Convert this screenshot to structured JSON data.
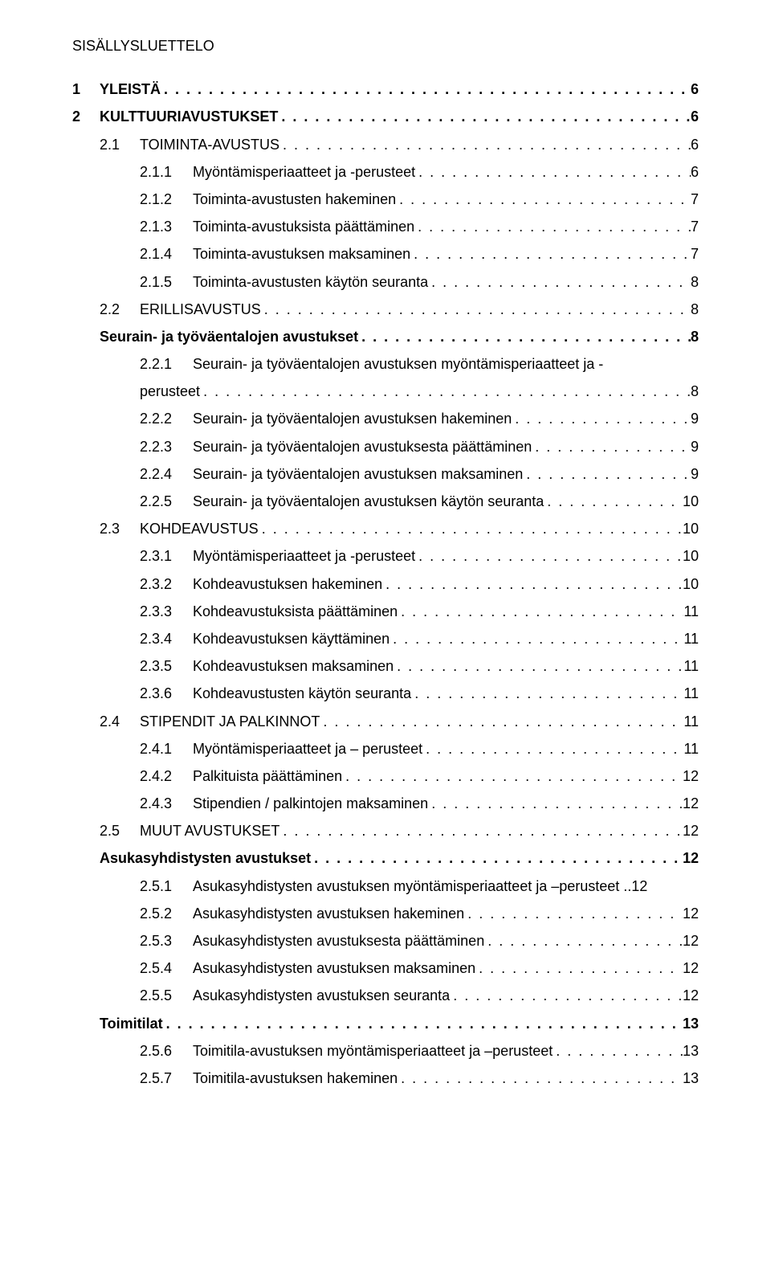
{
  "toc_heading": "SISÄLLYSLUETTELO",
  "dots": ". . . . . . . . . . . . . . . . . . . . . . . . . . . . . . . . . . . . . . . . . . . . . . . . . . . . . . . . . . . . . . . . . . . . . . . . . . . . . . . . . . . . . . . . . . . . . . . . . . . . . . . . . . . . . . . . . . . . . . . .",
  "entries": [
    {
      "level": 0,
      "num": "1",
      "label": "YLEISTÄ",
      "page": "6",
      "bold": true
    },
    {
      "level": 0,
      "num": "2",
      "label": "KULTTUURIAVUSTUKSET",
      "page": "6",
      "bold": true
    },
    {
      "level": 1,
      "num": "2.1",
      "label": "TOIMINTA-AVUSTUS",
      "page": "6",
      "bold": false
    },
    {
      "level": 2,
      "num": "2.1.1",
      "label": "Myöntämisperiaatteet ja -perusteet",
      "page": "6",
      "bold": false
    },
    {
      "level": 2,
      "num": "2.1.2",
      "label": "Toiminta-avustusten hakeminen",
      "page": "7",
      "bold": false
    },
    {
      "level": 2,
      "num": "2.1.3",
      "label": "Toiminta-avustuksista päättäminen",
      "page": "7",
      "bold": false
    },
    {
      "level": 2,
      "num": "2.1.4",
      "label": "Toiminta-avustuksen maksaminen",
      "page": "7",
      "bold": false
    },
    {
      "level": 2,
      "num": "2.1.5",
      "label": "Toiminta-avustusten käytön seuranta",
      "page": "8",
      "bold": false
    },
    {
      "level": 1,
      "num": "2.2",
      "label": "ERILLISAVUSTUS",
      "page": "8",
      "bold": false
    },
    {
      "level": 1,
      "num": "",
      "label": "Seurain- ja työväentalojen avustukset",
      "page": "8",
      "bold": true,
      "nodotsnum": true
    },
    {
      "level": 2,
      "num": "2.2.1",
      "label": "Seurain- ja työväentalojen avustuksen myöntämisperiaatteet ja -",
      "wrap": "perusteet",
      "page": "8",
      "bold": false
    },
    {
      "level": 2,
      "num": "2.2.2",
      "label": "Seurain- ja työväentalojen avustuksen hakeminen",
      "page": "9",
      "bold": false
    },
    {
      "level": 2,
      "num": "2.2.3",
      "label": "Seurain- ja työväentalojen avustuksesta päättäminen",
      "page": "9",
      "bold": false
    },
    {
      "level": 2,
      "num": "2.2.4",
      "label": "Seurain- ja työväentalojen avustuksen maksaminen",
      "page": "9",
      "bold": false
    },
    {
      "level": 2,
      "num": "2.2.5",
      "label": "Seurain- ja työväentalojen avustuksen käytön seuranta",
      "page": "10",
      "bold": false
    },
    {
      "level": 1,
      "num": "2.3",
      "label": "KOHDEAVUSTUS",
      "page": "10",
      "bold": false
    },
    {
      "level": 2,
      "num": "2.3.1",
      "label": "Myöntämisperiaatteet ja -perusteet",
      "page": "10",
      "bold": false
    },
    {
      "level": 2,
      "num": "2.3.2",
      "label": "Kohdeavustuksen hakeminen",
      "page": "10",
      "bold": false
    },
    {
      "level": 2,
      "num": "2.3.3",
      "label": "Kohdeavustuksista päättäminen",
      "page": "11",
      "bold": false
    },
    {
      "level": 2,
      "num": "2.3.4",
      "label": "Kohdeavustuksen käyttäminen",
      "page": "11",
      "bold": false
    },
    {
      "level": 2,
      "num": "2.3.5",
      "label": "Kohdeavustuksen maksaminen",
      "page": "11",
      "bold": false
    },
    {
      "level": 2,
      "num": "2.3.6",
      "label": "Kohdeavustusten käytön seuranta",
      "page": "11",
      "bold": false
    },
    {
      "level": 1,
      "num": "2.4",
      "label": "STIPENDIT JA PALKINNOT",
      "page": "11",
      "bold": false
    },
    {
      "level": 2,
      "num": "2.4.1",
      "label": "Myöntämisperiaatteet ja – perusteet",
      "page": "11",
      "bold": false
    },
    {
      "level": 2,
      "num": "2.4.2",
      "label": "Palkituista päättäminen",
      "page": "12",
      "bold": false
    },
    {
      "level": 2,
      "num": "2.4.3",
      "label": "Stipendien / palkintojen maksaminen",
      "page": "12",
      "bold": false
    },
    {
      "level": 1,
      "num": "2.5",
      "label": "MUUT AVUSTUKSET",
      "page": "12",
      "bold": false
    },
    {
      "level": 1,
      "num": "",
      "label": "Asukasyhdistysten avustukset",
      "page": "12",
      "bold": true,
      "nodotsnum": true
    },
    {
      "level": 2,
      "num": "2.5.1",
      "label": "Asukasyhdistysten avustuksen myöntämisperiaatteet ja –perusteet",
      "page": "12",
      "bold": false,
      "tightdots": true
    },
    {
      "level": 2,
      "num": "2.5.2",
      "label": "Asukasyhdistysten avustuksen hakeminen",
      "page": "12",
      "bold": false
    },
    {
      "level": 2,
      "num": "2.5.3",
      "label": "Asukasyhdistysten avustuksesta päättäminen",
      "page": "12",
      "bold": false
    },
    {
      "level": 2,
      "num": "2.5.4",
      "label": "Asukasyhdistysten avustuksen maksaminen",
      "page": "12",
      "bold": false
    },
    {
      "level": 2,
      "num": "2.5.5",
      "label": "Asukasyhdistysten avustuksen seuranta",
      "page": "12",
      "bold": false
    },
    {
      "level": 1,
      "num": "",
      "label": "Toimitilat",
      "page": "13",
      "bold": true,
      "nodotsnum": true
    },
    {
      "level": 2,
      "num": "2.5.6",
      "label": "Toimitila-avustuksen myöntämisperiaatteet ja –perusteet",
      "page": "13",
      "bold": false
    },
    {
      "level": 2,
      "num": "2.5.7",
      "label": "Toimitila-avustuksen hakeminen",
      "page": "13",
      "bold": false
    }
  ]
}
